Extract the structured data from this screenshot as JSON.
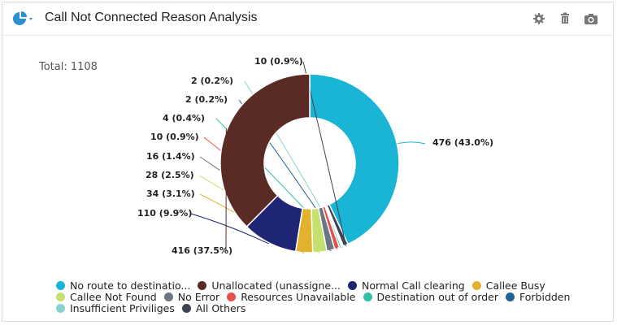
{
  "header": {
    "title": "Call Not Connected Reason Analysis"
  },
  "icons": {
    "chart_type": "pie-chart-dropdown-icon",
    "settings": "gear-icon",
    "delete": "trash-icon",
    "snapshot": "camera-icon"
  },
  "colors": {
    "brand": "#2b8fd0"
  },
  "chart_data": {
    "type": "pie",
    "style": "donut",
    "total_label": "Total: 1108",
    "series": [
      {
        "name": "No route to destinatio...",
        "value": 476,
        "percent": "43.0%",
        "label": "476 (43.0%)",
        "color": "#1ab4d4"
      },
      {
        "name": "Unallocated (unassigne...",
        "value": 416,
        "percent": "37.5%",
        "label": "416 (37.5%)",
        "color": "#5a2a24"
      },
      {
        "name": "Normal Call clearing",
        "value": 110,
        "percent": "9.9%",
        "label": "110 (9.9%)",
        "color": "#1e2575"
      },
      {
        "name": "Callee Busy",
        "value": 34,
        "percent": "3.1%",
        "label": "34 (3.1%)",
        "color": "#e2b22e"
      },
      {
        "name": "Callee Not Found",
        "value": 28,
        "percent": "2.5%",
        "label": "28 (2.5%)",
        "color": "#c4e06f"
      },
      {
        "name": "No Error",
        "value": 16,
        "percent": "1.4%",
        "label": "16 (1.4%)",
        "color": "#6c7583"
      },
      {
        "name": "Resources Unavailable",
        "value": 10,
        "percent": "0.9%",
        "label": "10 (0.9%)",
        "color": "#e4524c"
      },
      {
        "name": "Destination out of order",
        "value": 4,
        "percent": "0.4%",
        "label": "4 (0.4%)",
        "color": "#33bfa3"
      },
      {
        "name": "Forbidden",
        "value": 2,
        "percent": "0.2%",
        "label": "2 (0.2%)",
        "color": "#1f6294"
      },
      {
        "name": "Insufficient Priviliges",
        "value": 2,
        "percent": "0.2%",
        "label": "2 (0.2%)",
        "color": "#86d4d0"
      },
      {
        "name": "All Others",
        "value": 10,
        "percent": "0.9%",
        "label": "10 (0.9%)",
        "color": "#3b4450"
      }
    ],
    "legend_position": "bottom"
  }
}
